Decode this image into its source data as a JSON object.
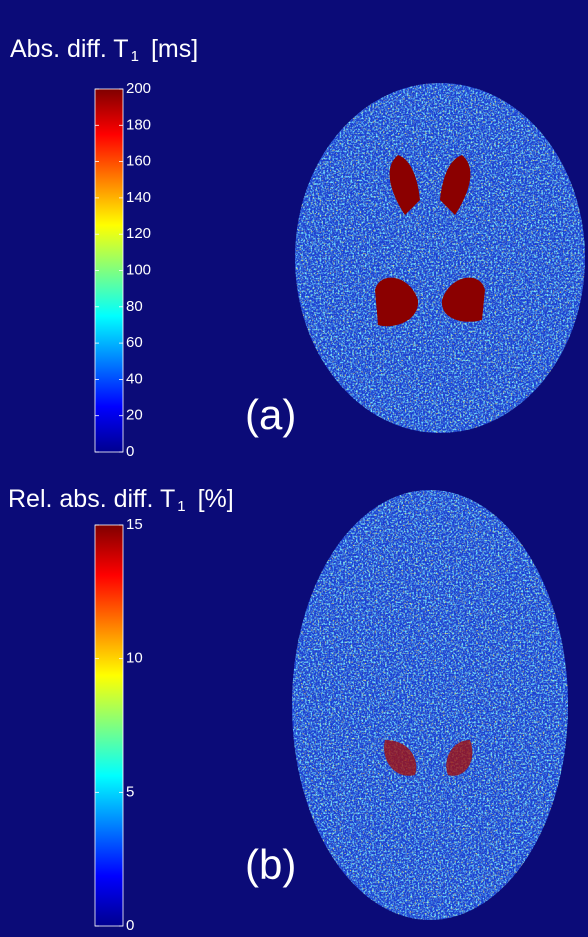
{
  "chart_data": [
    {
      "type": "colorbar",
      "title": "Abs. diff. T",
      "title_sub": "1",
      "title_unit": "[ms]",
      "label": "(a)",
      "colormap": "jet",
      "ylim": [
        0,
        200
      ],
      "yticks": [
        0,
        20,
        40,
        60,
        80,
        100,
        120,
        140,
        160,
        180,
        200
      ]
    },
    {
      "type": "colorbar",
      "title": "Rel. abs. diff. T",
      "title_sub": "1",
      "title_unit": "[%]",
      "label": "(b)",
      "colormap": "jet",
      "ylim": [
        0,
        15
      ],
      "yticks": [
        0,
        5,
        10,
        15
      ]
    }
  ]
}
